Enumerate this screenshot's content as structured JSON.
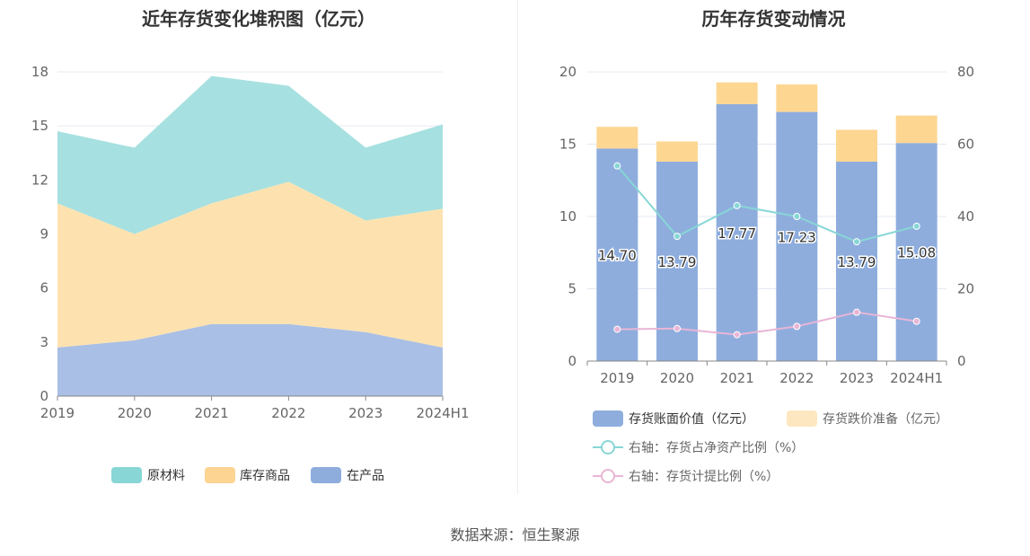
{
  "source_label": "数据来源：恒生聚源",
  "chart_data": [
    {
      "type": "area",
      "stacked": true,
      "title": "近年存货变化堆积图（亿元）",
      "categories": [
        "2019",
        "2020",
        "2021",
        "2022",
        "2023",
        "2024H1"
      ],
      "ylim": [
        0,
        18
      ],
      "yticks": [
        0,
        3,
        6,
        9,
        12,
        15,
        18
      ],
      "legend_position": "bottom",
      "series": [
        {
          "name": "在产品",
          "values": [
            2.7,
            3.1,
            4.0,
            4.0,
            3.55,
            2.7
          ],
          "color": "#a9bfe5"
        },
        {
          "name": "库存商品",
          "values": [
            8.0,
            5.9,
            6.7,
            7.9,
            6.2,
            7.7
          ],
          "color": "#fde2b0"
        },
        {
          "name": "原材料",
          "values": [
            4.0,
            4.79,
            7.07,
            5.33,
            4.04,
            4.68
          ],
          "color": "#a7e0e0"
        }
      ],
      "legend": [
        {
          "name": "原材料",
          "color": "#88d6d6"
        },
        {
          "name": "库存商品",
          "color": "#fdd492"
        },
        {
          "name": "在产品",
          "color": "#8eaddd"
        }
      ]
    },
    {
      "type": "bar",
      "stacked": true,
      "title": "历年存货变动情况",
      "categories": [
        "2019",
        "2020",
        "2021",
        "2022",
        "2023",
        "2024H1"
      ],
      "ylim": [
        0,
        20
      ],
      "yticks": [
        0,
        5,
        10,
        15,
        20
      ],
      "y2lim": [
        0,
        80
      ],
      "y2ticks": [
        0,
        20,
        40,
        60,
        80
      ],
      "legend_position": "bottom",
      "series": [
        {
          "name": "存货账面价值（亿元）",
          "values": [
            14.7,
            13.79,
            17.77,
            17.23,
            13.79,
            15.08
          ],
          "color": "#8eaddd",
          "labels": [
            "14.70",
            "13.79",
            "17.77",
            "17.23",
            "13.79",
            "15.08"
          ]
        },
        {
          "name": "存货跌价准备（亿元）",
          "values": [
            1.5,
            1.4,
            1.5,
            1.9,
            2.2,
            1.9
          ],
          "color": "#fdd692"
        }
      ],
      "lines": [
        {
          "name": "右轴：存货占净资产比例（%）",
          "axis": "right",
          "values": [
            54.0,
            34.5,
            43.0,
            40.0,
            33.0,
            37.3
          ],
          "color": "#88d6d6"
        },
        {
          "name": "右轴：存货计提比例（%）",
          "axis": "right",
          "values": [
            8.8,
            9.0,
            7.3,
            9.6,
            13.5,
            11.0
          ],
          "color": "#e8b5d6"
        }
      ]
    }
  ]
}
